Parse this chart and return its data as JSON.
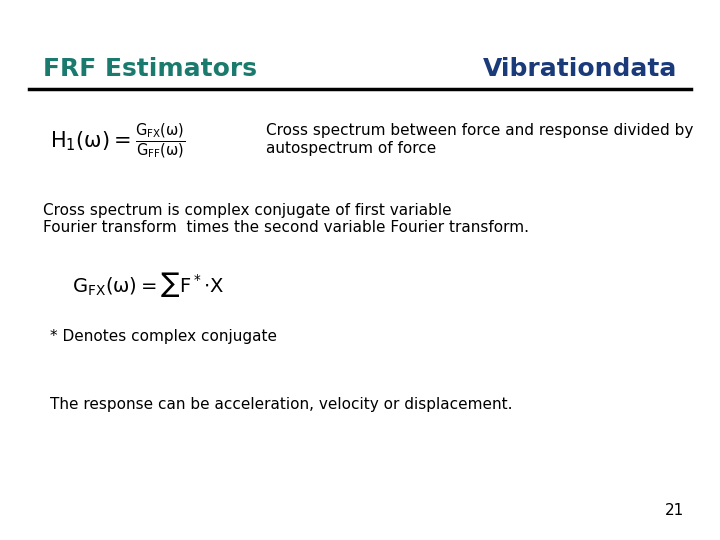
{
  "title_left": "FRF Estimators",
  "title_right": "Vibrationdata",
  "title_left_color": "#1a7a6e",
  "title_right_color": "#1a3a7a",
  "background_color": "#ffffff",
  "line_color": "#000000",
  "text_color": "#000000",
  "formula1_desc_line1": "Cross spectrum between force and response divided by",
  "formula1_desc_line2": "autospectrum of force",
  "body_text_line1": "Cross spectrum is complex conjugate of first variable",
  "body_text_line2": "Fourier transform  times the second variable Fourier transform.",
  "note_text": "* Denotes complex conjugate",
  "footer_text": "The response can be acceleration, velocity or displacement.",
  "page_number": "21",
  "figsize": [
    7.2,
    5.4
  ],
  "dpi": 100
}
